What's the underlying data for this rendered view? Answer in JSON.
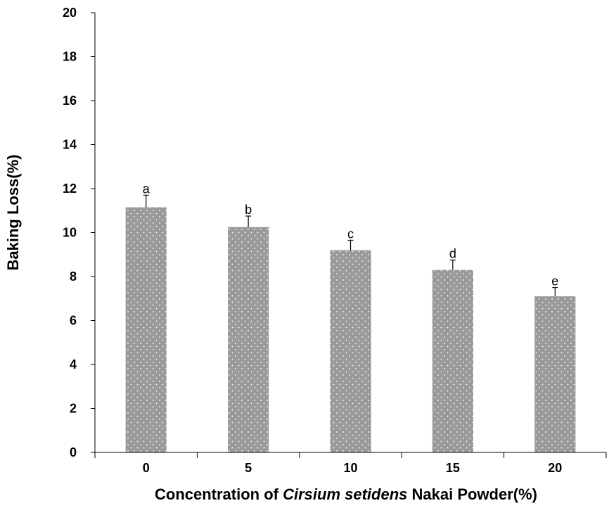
{
  "chart_data": {
    "type": "bar",
    "categories": [
      "0",
      "5",
      "10",
      "15",
      "20"
    ],
    "values": [
      11.15,
      10.25,
      9.2,
      8.3,
      7.1
    ],
    "errors": [
      0.55,
      0.5,
      0.45,
      0.45,
      0.4
    ],
    "significance_labels": [
      "a",
      "b",
      "c",
      "d",
      "e"
    ],
    "ylim": [
      0,
      20
    ],
    "yticks": [
      "0",
      "2",
      "4",
      "6",
      "8",
      "10",
      "12",
      "14",
      "16",
      "18",
      "20"
    ],
    "ylabel": "Baking Loss(%)",
    "xlabel": {
      "prefix": "Concentration of ",
      "italic": "Cirsium setidens",
      "suffix": " Nakai Powder(%)"
    },
    "grid": false,
    "legend": "none",
    "bar_color": "#9a9a9a",
    "dot_color": "#ffffff"
  }
}
